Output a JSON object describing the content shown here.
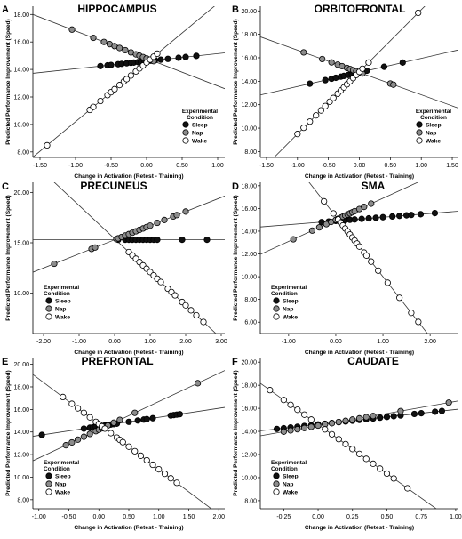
{
  "legend_header": "Experimental\nCondition",
  "ylabel": "Predicted Performance Improvement (Speed)",
  "xlabel": "Change in Activation (Retest - Training)",
  "conditions": [
    {
      "name": "Sleep",
      "fill": "#111111"
    },
    {
      "name": "Nap",
      "fill": "#8c8c8c"
    },
    {
      "name": "Wake",
      "fill": "#ffffff"
    }
  ],
  "chart_data": [
    {
      "letter": "A",
      "title": "HIPPOCAMPUS",
      "type": "scatter",
      "xlim": [
        -1.6,
        1.1
      ],
      "ylim": [
        7.6,
        18.6
      ],
      "xticks": [
        -1.5,
        -1.0,
        -0.5,
        0.0,
        0.5,
        1.0
      ],
      "xtick_labels": [
        "-1.50",
        "-1.00",
        "-0.50",
        "0.00",
        "0.50",
        "1.00"
      ],
      "yticks": [
        8,
        10,
        12,
        14,
        16,
        18
      ],
      "ytick_labels": [
        "8.00",
        "10.00",
        "12.00",
        "14.00",
        "16.00",
        "18.00"
      ],
      "series": [
        {
          "name": "Sleep",
          "intercept": 14.6,
          "slope": 0.55,
          "x": [
            -0.65,
            -0.55,
            -0.5,
            -0.4,
            -0.35,
            -0.28,
            -0.22,
            -0.18,
            -0.12,
            -0.08,
            -0.03,
            0.02,
            0.06,
            0.12,
            0.2,
            0.3,
            0.45,
            0.55,
            0.7
          ]
        },
        {
          "name": "Nap",
          "intercept": 14.8,
          "slope": -2.0,
          "x": [
            -1.05,
            -0.75,
            -0.6,
            -0.52,
            -0.45,
            -0.38,
            -0.3,
            -0.22,
            -0.15,
            -0.1,
            -0.05,
            0.0,
            0.05,
            0.1
          ]
        },
        {
          "name": "Wake",
          "intercept": 14.5,
          "slope": 4.3,
          "x": [
            -1.4,
            -0.8,
            -0.75,
            -0.65,
            -0.55,
            -0.5,
            -0.45,
            -0.38,
            -0.32,
            -0.28,
            -0.22,
            -0.15,
            -0.1,
            -0.05,
            0.0,
            0.05,
            0.1,
            0.15
          ]
        }
      ]
    },
    {
      "letter": "B",
      "title": "ORBITOFRONTAL",
      "type": "scatter",
      "xlim": [
        -1.6,
        1.6
      ],
      "ylim": [
        7.5,
        20.4
      ],
      "xticks": [
        -1.5,
        -1.0,
        -0.5,
        0.0,
        0.5,
        1.0,
        1.5
      ],
      "xtick_labels": [
        "-1.50",
        "-1.00",
        "-0.50",
        "0.00",
        "0.50",
        "1.00",
        "1.50"
      ],
      "yticks": [
        8,
        10,
        12,
        14,
        16,
        18,
        20
      ],
      "ytick_labels": [
        "8.00",
        "10.00",
        "12.00",
        "14.00",
        "16.00",
        "18.00",
        "20.00"
      ],
      "series": [
        {
          "name": "Sleep",
          "intercept": 14.75,
          "slope": 1.2,
          "x": [
            -0.8,
            -0.55,
            -0.45,
            -0.38,
            -0.3,
            -0.25,
            -0.18,
            -0.12,
            -0.05,
            0.02,
            0.12,
            0.4,
            0.7
          ]
        },
        {
          "name": "Nap",
          "intercept": 14.75,
          "slope": -1.9,
          "x": [
            -0.9,
            -0.6,
            -0.45,
            -0.35,
            -0.28,
            -0.2,
            -0.15,
            -0.1,
            -0.05,
            0.0,
            0.05,
            0.5,
            0.55
          ]
        },
        {
          "name": "Wake",
          "intercept": 14.8,
          "slope": 5.3,
          "x": [
            -1.0,
            -0.9,
            -0.8,
            -0.7,
            -0.62,
            -0.55,
            -0.48,
            -0.42,
            -0.35,
            -0.3,
            -0.25,
            -0.2,
            -0.15,
            -0.1,
            -0.05,
            0.0,
            0.05,
            0.15,
            0.95
          ]
        }
      ]
    },
    {
      "letter": "C",
      "title": "PRECUNEUS",
      "type": "scatter",
      "xlim": [
        -2.3,
        3.1
      ],
      "ylim": [
        6.0,
        21.0
      ],
      "xticks": [
        -2,
        -1,
        0,
        1,
        2,
        3
      ],
      "xtick_labels": [
        "-2.00",
        "-1.00",
        "0.00",
        "1.00",
        "2.00",
        "3.00"
      ],
      "yticks": [
        10,
        15,
        20
      ],
      "ytick_labels": [
        "10.00",
        "15.00",
        "20.00"
      ],
      "series": [
        {
          "name": "Sleep",
          "intercept": 15.3,
          "slope": 0.0,
          "x": [
            0.1,
            0.3,
            0.4,
            0.5,
            0.6,
            0.7,
            0.8,
            0.9,
            1.0,
            1.1,
            1.2,
            1.9,
            2.6
          ]
        },
        {
          "name": "Nap",
          "intercept": 15.3,
          "slope": 1.4,
          "x": [
            -1.7,
            -0.65,
            -0.55,
            0.05,
            0.1,
            0.2,
            0.3,
            0.4,
            0.5,
            0.6,
            0.7,
            0.8,
            0.9,
            1.0,
            1.2,
            1.4,
            1.65,
            1.75,
            2.0
          ]
        },
        {
          "name": "Wake",
          "intercept": 15.4,
          "slope": -3.3,
          "x": [
            0.4,
            0.5,
            0.6,
            0.7,
            0.8,
            0.9,
            1.0,
            1.1,
            1.2,
            1.3,
            1.5,
            1.6,
            1.7,
            1.9,
            2.0,
            2.15,
            2.3,
            2.5
          ]
        }
      ]
    },
    {
      "letter": "D",
      "title": "SMA",
      "type": "scatter",
      "xlim": [
        -1.6,
        2.6
      ],
      "ylim": [
        5.0,
        18.3
      ],
      "xticks": [
        -1,
        0,
        1,
        2
      ],
      "xtick_labels": [
        "-1.00",
        "0.00",
        "1.00",
        "2.00"
      ],
      "yticks": [
        6,
        8,
        10,
        12,
        14,
        16,
        18
      ],
      "ytick_labels": [
        "6.00",
        "8.00",
        "10.00",
        "12.00",
        "14.00",
        "16.00",
        "18.00"
      ],
      "series": [
        {
          "name": "Sleep",
          "intercept": 14.9,
          "slope": 0.33,
          "x": [
            -0.3,
            -0.15,
            0.0,
            0.1,
            0.2,
            0.3,
            0.4,
            0.55,
            0.7,
            0.85,
            1.0,
            1.2,
            1.35,
            1.5,
            1.6,
            1.8,
            2.1
          ]
        },
        {
          "name": "Nap",
          "intercept": 15.0,
          "slope": 1.9,
          "x": [
            -0.9,
            -0.5,
            -0.35,
            -0.2,
            -0.1,
            0.0,
            0.05,
            0.1,
            0.15,
            0.2,
            0.25,
            0.3,
            0.35,
            0.4,
            0.5,
            0.6,
            0.75
          ]
        },
        {
          "name": "Wake",
          "intercept": 15.3,
          "slope": -5.3,
          "x": [
            -0.25,
            -0.05,
            0.05,
            0.1,
            0.15,
            0.2,
            0.25,
            0.3,
            0.35,
            0.4,
            0.45,
            0.5,
            0.6,
            0.65,
            0.75,
            0.9,
            1.1,
            1.35,
            1.6,
            1.75
          ]
        }
      ]
    },
    {
      "letter": "E",
      "title": "PREFRONTAL",
      "type": "scatter",
      "xlim": [
        -1.1,
        2.1
      ],
      "ylim": [
        7.2,
        20.6
      ],
      "xticks": [
        -1.0,
        -0.5,
        0.0,
        0.5,
        1.0,
        1.5,
        2.0
      ],
      "xtick_labels": [
        "-1.00",
        "-0.50",
        "0.00",
        "0.50",
        "1.00",
        "1.50",
        "2.00"
      ],
      "yticks": [
        8,
        10,
        12,
        14,
        16,
        18,
        20
      ],
      "ytick_labels": [
        "8.00",
        "10.00",
        "12.00",
        "14.00",
        "16.00",
        "18.00",
        "20.00"
      ],
      "series": [
        {
          "name": "Sleep",
          "intercept": 14.5,
          "slope": 0.8,
          "x": [
            -0.95,
            -0.25,
            -0.15,
            -0.1,
            -0.05,
            0.0,
            0.05,
            0.1,
            0.15,
            0.2,
            0.25,
            0.3,
            0.5,
            0.65,
            0.75,
            0.8,
            0.9,
            1.2,
            1.25,
            1.3,
            1.35
          ]
        },
        {
          "name": "Nap",
          "intercept": 14.2,
          "slope": 2.5,
          "x": [
            -0.55,
            -0.45,
            -0.35,
            -0.25,
            -0.15,
            -0.05,
            0.0,
            0.05,
            0.1,
            0.15,
            0.25,
            0.35,
            0.6,
            1.65
          ]
        },
        {
          "name": "Wake",
          "intercept": 14.7,
          "slope": -4.0,
          "x": [
            -0.6,
            -0.45,
            -0.35,
            -0.25,
            -0.15,
            -0.05,
            0.0,
            0.05,
            0.1,
            0.2,
            0.3,
            0.35,
            0.4,
            0.5,
            0.6,
            0.7,
            0.8,
            0.9,
            1.0,
            1.1,
            1.2,
            1.3
          ]
        }
      ]
    },
    {
      "letter": "F",
      "title": "CAUDATE",
      "type": "scatter",
      "xlim": [
        -0.42,
        1.02
      ],
      "ylim": [
        7.3,
        20.4
      ],
      "xticks": [
        -0.25,
        0.0,
        0.25,
        0.5,
        0.75,
        1.0
      ],
      "xtick_labels": [
        "-0.25",
        "0.00",
        "0.25",
        "0.50",
        "0.75",
        "1.00"
      ],
      "yticks": [
        8,
        10,
        12,
        14,
        16,
        18,
        20
      ],
      "ytick_labels": [
        "8.00",
        "10.00",
        "12.00",
        "14.00",
        "16.00",
        "18.00",
        "20.00"
      ],
      "series": [
        {
          "name": "Sleep",
          "intercept": 14.6,
          "slope": 1.3,
          "x": [
            -0.3,
            -0.25,
            -0.2,
            -0.15,
            -0.1,
            -0.05,
            0.0,
            0.05,
            0.1,
            0.15,
            0.2,
            0.25,
            0.3,
            0.35,
            0.4,
            0.45,
            0.5,
            0.55,
            0.6,
            0.7,
            0.75,
            0.85,
            0.9
          ]
        },
        {
          "name": "Nap",
          "intercept": 14.5,
          "slope": 2.1,
          "x": [
            -0.25,
            -0.2,
            -0.15,
            -0.1,
            -0.05,
            0.0,
            0.05,
            0.1,
            0.15,
            0.2,
            0.25,
            0.3,
            0.35,
            0.4,
            0.6,
            0.95
          ]
        },
        {
          "name": "Wake",
          "intercept": 14.6,
          "slope": -8.5,
          "x": [
            -0.35,
            -0.25,
            -0.2,
            -0.15,
            -0.1,
            -0.05,
            0.05,
            0.1,
            0.15,
            0.2,
            0.25,
            0.3,
            0.35,
            0.4,
            0.45,
            0.5,
            0.55,
            0.65
          ]
        }
      ]
    }
  ]
}
